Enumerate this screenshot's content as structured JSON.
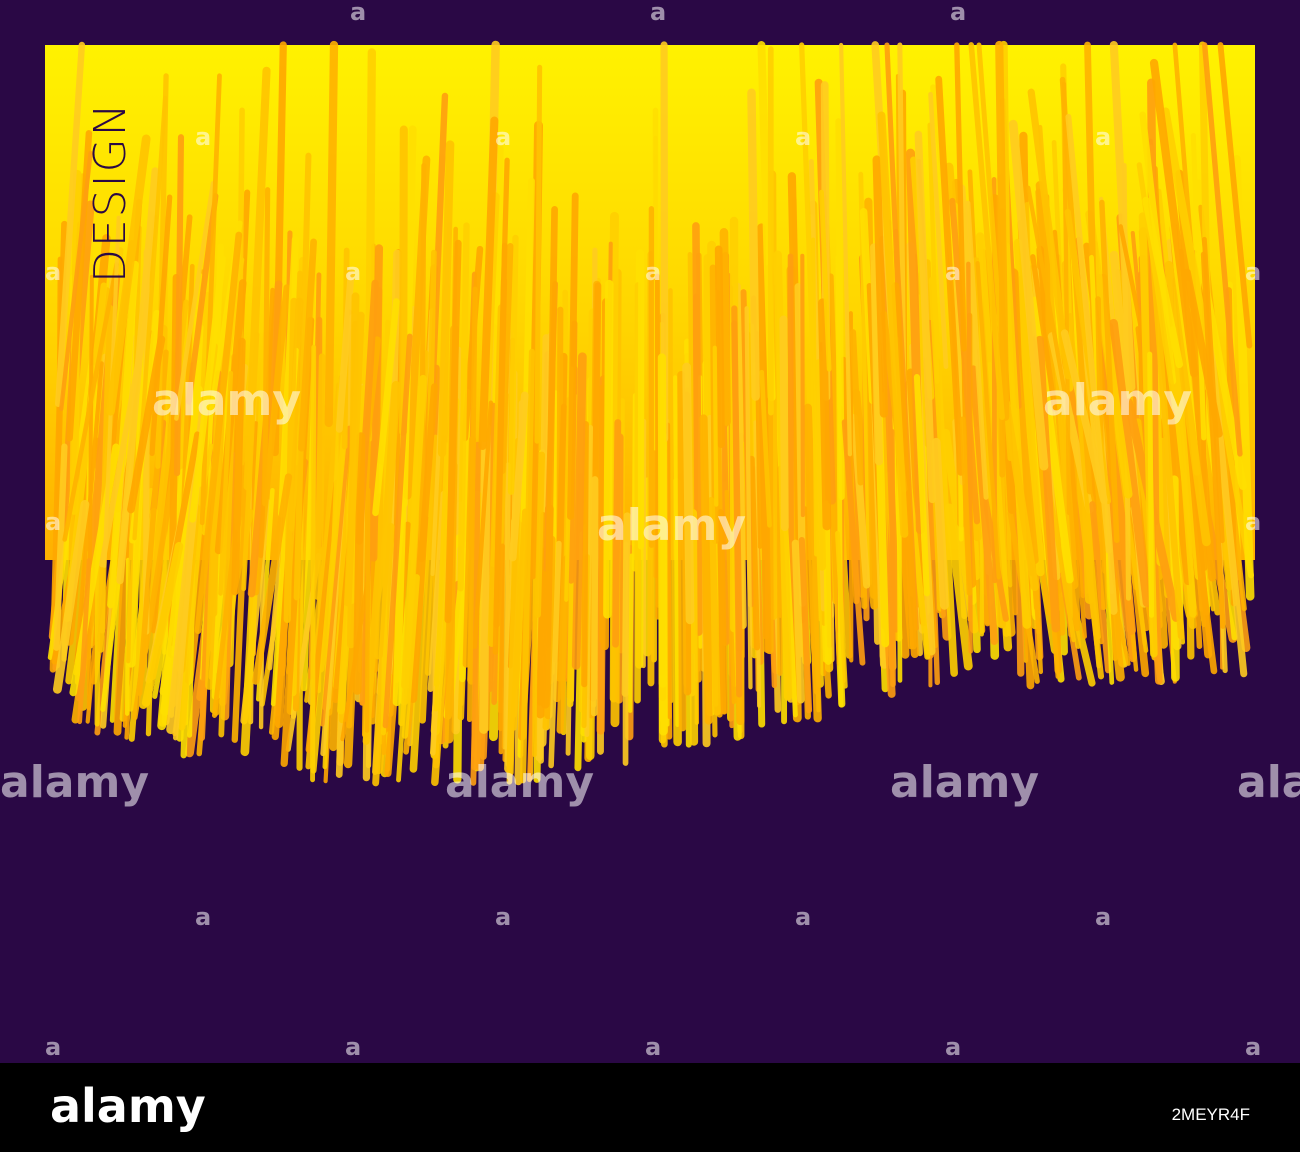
{
  "poster": {
    "title": "DESIGN"
  },
  "watermark": {
    "word": "alamy",
    "glyph": "a"
  },
  "footer": {
    "brand": "alamy",
    "image_id": "2MEYR4F"
  }
}
